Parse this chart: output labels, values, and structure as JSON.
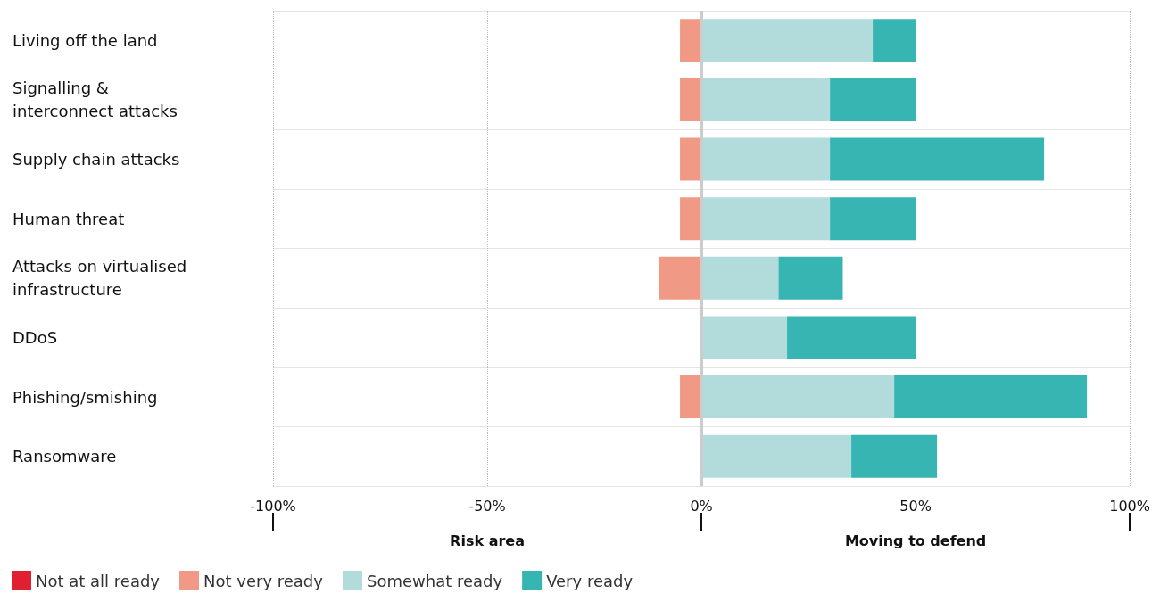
{
  "chart_data": {
    "type": "bar",
    "orientation": "horizontal",
    "stacked": true,
    "categories": [
      "Living off the land",
      "Signalling & interconnect attacks",
      "Supply chain attacks",
      "Human threat",
      "Attacks on virtualised infrastructure",
      "DDoS",
      "Phishing/smishing",
      "Ransomware"
    ],
    "series": [
      {
        "name": "Not at all ready",
        "color": "#e0202e",
        "values": [
          0,
          0,
          0,
          0,
          0,
          0,
          0,
          0
        ]
      },
      {
        "name": "Not very ready",
        "color": "#f09a85",
        "values": [
          -5,
          -5,
          -5,
          -5,
          -10,
          0,
          -5,
          0
        ]
      },
      {
        "name": "Somewhat ready",
        "color": "#b2dcdb",
        "values": [
          40,
          30,
          30,
          30,
          18,
          20,
          45,
          35
        ]
      },
      {
        "name": "Very ready",
        "color": "#36b5b3",
        "values": [
          10,
          20,
          50,
          20,
          15,
          30,
          45,
          20
        ]
      }
    ],
    "xlim": [
      -100,
      100
    ],
    "xticks": [
      {
        "value": -100,
        "label": "-100%"
      },
      {
        "value": -50,
        "label": "-50%"
      },
      {
        "value": 0,
        "label": "0%"
      },
      {
        "value": 50,
        "label": "50%"
      },
      {
        "value": 100,
        "label": "100%"
      }
    ],
    "ref_lines": [
      {
        "axis": "x",
        "value": 0,
        "color": "#cccccc"
      }
    ],
    "annotations": [
      "Risk area",
      "Moving to defend"
    ],
    "grid": true,
    "legend": "bottom left"
  }
}
